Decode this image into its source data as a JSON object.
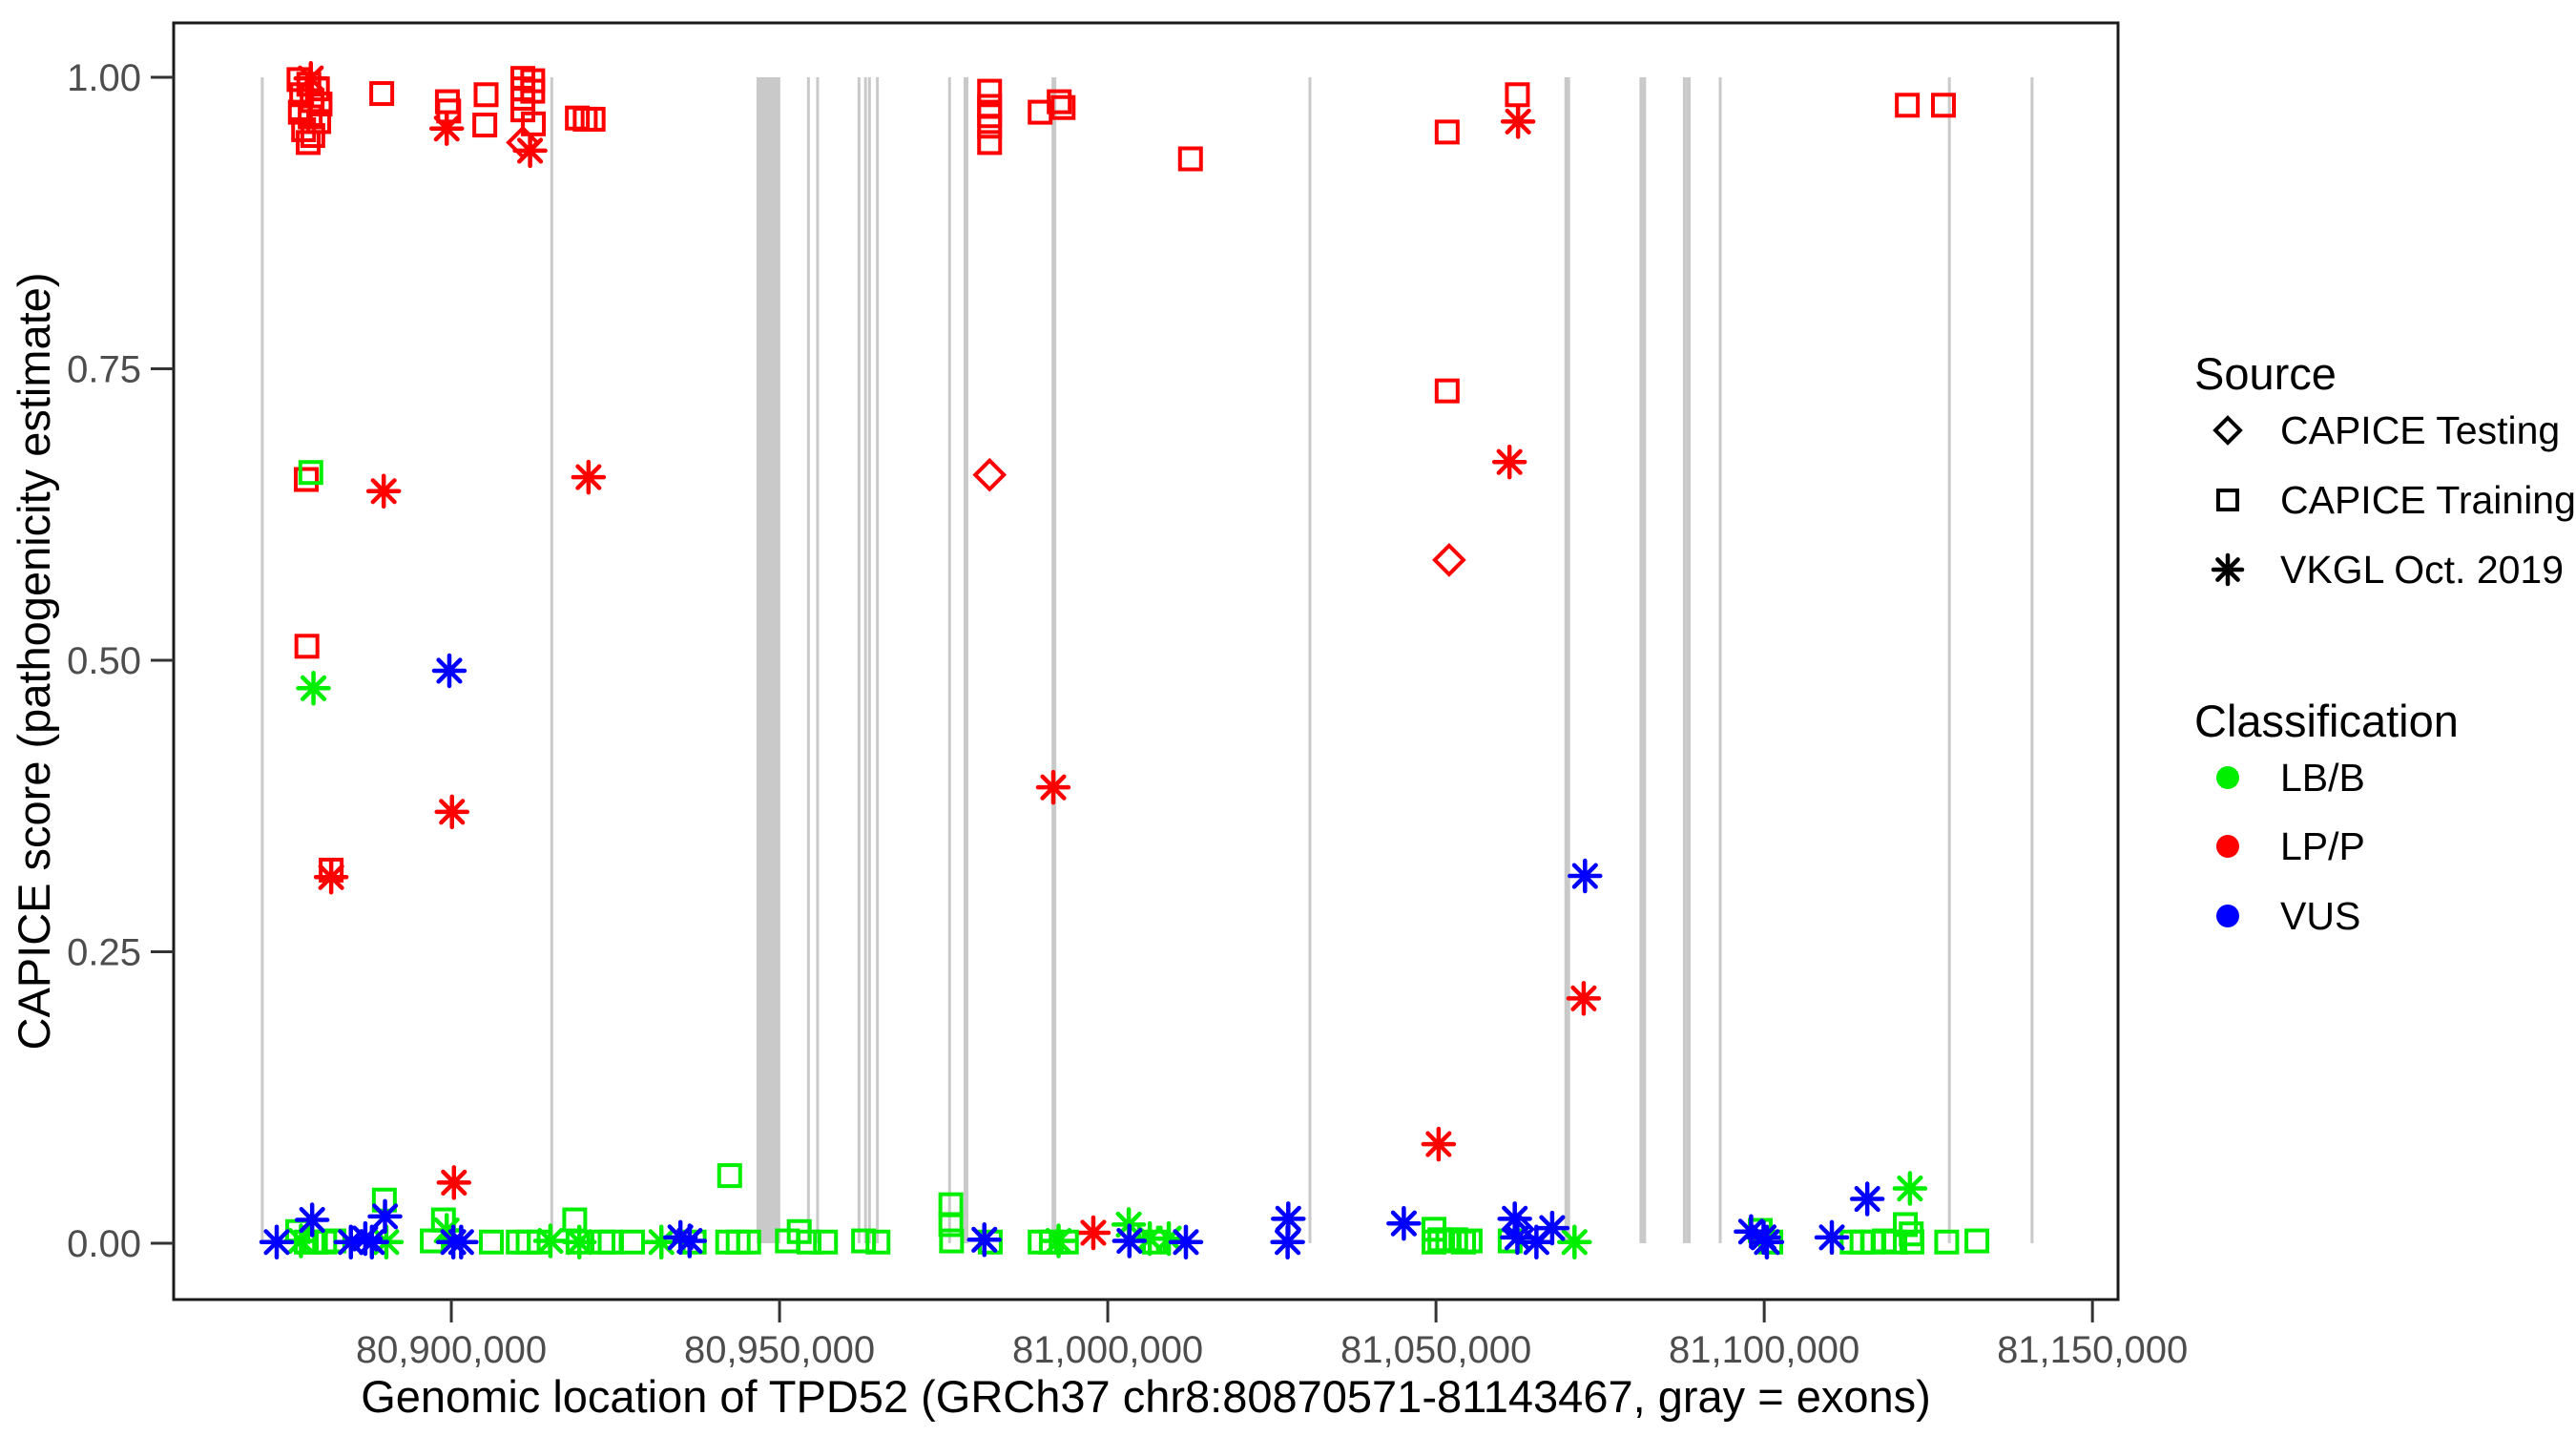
{
  "legend": {
    "source_title": "Source",
    "source_items": [
      {
        "label": "CAPICE Testing",
        "marker": "diamond"
      },
      {
        "label": "CAPICE Training",
        "marker": "square"
      },
      {
        "label": "VKGL Oct. 2019",
        "marker": "asterisk"
      }
    ],
    "classification_title": "Classification",
    "classification_items": [
      {
        "label": "LB/B",
        "color": "#00EE00"
      },
      {
        "label": "LP/P",
        "color": "#FF0000"
      },
      {
        "label": "VUS",
        "color": "#0000FF"
      }
    ]
  },
  "chart_data": {
    "type": "scatter",
    "title": "",
    "xlabel": "Genomic location of TPD52 (GRCh37 chr8:80870571-81143467, gray = exons)",
    "ylabel": "CAPICE score (pathogenicity estimate)",
    "x_domain": [
      80857700,
      81153900
    ],
    "y_domain": [
      -0.0483,
      1.0466
    ],
    "grid": false,
    "legend_position": "right",
    "x_ticks": [
      {
        "v": 80900000,
        "label": "80,900,000"
      },
      {
        "v": 80950000,
        "label": "80,950,000"
      },
      {
        "v": 81000000,
        "label": "81,000,000"
      },
      {
        "v": 81050000,
        "label": "81,050,000"
      },
      {
        "v": 81100000,
        "label": "81,100,000"
      },
      {
        "v": 81150000,
        "label": "81,150,000"
      }
    ],
    "y_ticks": [
      {
        "v": 0.0,
        "label": "0.00"
      },
      {
        "v": 0.25,
        "label": "0.25"
      },
      {
        "v": 0.5,
        "label": "0.50"
      },
      {
        "v": 0.75,
        "label": "0.75"
      },
      {
        "v": 1.0,
        "label": "1.00"
      }
    ],
    "exon_color": "#C9C9C9",
    "exons": [
      {
        "pos": 80871200,
        "w": 3
      },
      {
        "pos": 80915300,
        "w": 3
      },
      {
        "pos": 80948300,
        "w": 25
      },
      {
        "pos": 80954400,
        "w": 3
      },
      {
        "pos": 80955800,
        "w": 3
      },
      {
        "pos": 80962100,
        "w": 3
      },
      {
        "pos": 80963100,
        "w": 3
      },
      {
        "pos": 80963700,
        "w": 3
      },
      {
        "pos": 80964900,
        "w": 3
      },
      {
        "pos": 80975900,
        "w": 3
      },
      {
        "pos": 80978400,
        "w": 5
      },
      {
        "pos": 80991800,
        "w": 5
      },
      {
        "pos": 81030800,
        "w": 3
      },
      {
        "pos": 81070000,
        "w": 6
      },
      {
        "pos": 81081500,
        "w": 7
      },
      {
        "pos": 81087900,
        "w": 4
      },
      {
        "pos": 81088500,
        "w": 4
      },
      {
        "pos": 81093300,
        "w": 3
      },
      {
        "pos": 81128200,
        "w": 3
      },
      {
        "pos": 81140800,
        "w": 3
      }
    ],
    "points": [
      [
        80876800,
        0.998,
        "CAPICE Training",
        "LP/P"
      ],
      [
        80878300,
        0.994,
        "CAPICE Training",
        "LP/P"
      ],
      [
        80879600,
        0.99,
        "CAPICE Training",
        "LP/P"
      ],
      [
        80877200,
        0.985,
        "CAPICE Training",
        "LP/P"
      ],
      [
        80878800,
        0.98,
        "CAPICE Training",
        "LP/P"
      ],
      [
        80880000,
        0.977,
        "CAPICE Training",
        "LP/P"
      ],
      [
        80877000,
        0.97,
        "CAPICE Training",
        "LP/P"
      ],
      [
        80878500,
        0.966,
        "CAPICE Training",
        "LP/P"
      ],
      [
        80879800,
        0.962,
        "CAPICE Training",
        "LP/P"
      ],
      [
        80877500,
        0.955,
        "CAPICE Training",
        "LP/P"
      ],
      [
        80878900,
        0.95,
        "CAPICE Training",
        "LP/P"
      ],
      [
        80878200,
        0.944,
        "CAPICE Training",
        "LP/P"
      ],
      [
        80878600,
        0.999,
        "VKGL Oct. 2019",
        "LP/P"
      ],
      [
        80889400,
        0.986,
        "CAPICE Training",
        "LP/P"
      ],
      [
        80899400,
        0.979,
        "CAPICE Training",
        "LP/P"
      ],
      [
        80899600,
        0.971,
        "CAPICE Training",
        "LP/P"
      ],
      [
        80899300,
        0.956,
        "VKGL Oct. 2019",
        "LP/P"
      ],
      [
        80905300,
        0.985,
        "CAPICE Training",
        "LP/P"
      ],
      [
        80905100,
        0.959,
        "CAPICE Training",
        "LP/P"
      ],
      [
        80910900,
        0.999,
        "CAPICE Training",
        "LP/P"
      ],
      [
        80912400,
        0.997,
        "CAPICE Training",
        "LP/P"
      ],
      [
        80910900,
        0.99,
        "CAPICE Training",
        "LP/P"
      ],
      [
        80912400,
        0.988,
        "CAPICE Training",
        "LP/P"
      ],
      [
        80910900,
        0.982,
        "CAPICE Training",
        "LP/P"
      ],
      [
        80910900,
        0.972,
        "CAPICE Training",
        "LP/P"
      ],
      [
        80912500,
        0.96,
        "CAPICE Training",
        "LP/P"
      ],
      [
        80910900,
        0.944,
        "CAPICE Testing",
        "LP/P"
      ],
      [
        80912000,
        0.937,
        "VKGL Oct. 2019",
        "LP/P"
      ],
      [
        80919200,
        0.965,
        "CAPICE Training",
        "LP/P"
      ],
      [
        80920400,
        0.964,
        "CAPICE Training",
        "LP/P"
      ],
      [
        80921600,
        0.964,
        "CAPICE Training",
        "LP/P"
      ],
      [
        80877900,
        0.655,
        "CAPICE Training",
        "LP/P"
      ],
      [
        80878000,
        0.512,
        "CAPICE Training",
        "LP/P"
      ],
      [
        80881700,
        0.32,
        "CAPICE Training",
        "LP/P"
      ],
      [
        80881700,
        0.314,
        "VKGL Oct. 2019",
        "LP/P"
      ],
      [
        80889700,
        0.645,
        "VKGL Oct. 2019",
        "LP/P"
      ],
      [
        80900100,
        0.37,
        "VKGL Oct. 2019",
        "LP/P"
      ],
      [
        80900400,
        0.052,
        "VKGL Oct. 2019",
        "LP/P"
      ],
      [
        80920900,
        0.657,
        "VKGL Oct. 2019",
        "LP/P"
      ],
      [
        80982000,
        0.988,
        "CAPICE Training",
        "LP/P"
      ],
      [
        80982000,
        0.975,
        "CAPICE Training",
        "LP/P"
      ],
      [
        80982000,
        0.967,
        "CAPICE Training",
        "LP/P"
      ],
      [
        80982000,
        0.958,
        "CAPICE Training",
        "LP/P"
      ],
      [
        80982000,
        0.944,
        "CAPICE Training",
        "LP/P"
      ],
      [
        80982000,
        0.659,
        "CAPICE Testing",
        "LP/P"
      ],
      [
        80989700,
        0.97,
        "CAPICE Training",
        "LP/P"
      ],
      [
        80992600,
        0.979,
        "CAPICE Training",
        "LP/P"
      ],
      [
        80993200,
        0.974,
        "CAPICE Training",
        "LP/P"
      ],
      [
        81012600,
        0.93,
        "CAPICE Training",
        "LP/P"
      ],
      [
        80991700,
        0.391,
        "VKGL Oct. 2019",
        "LP/P"
      ],
      [
        80997800,
        0.009,
        "VKGL Oct. 2019",
        "LP/P"
      ],
      [
        81051700,
        0.953,
        "CAPICE Training",
        "LP/P"
      ],
      [
        81051700,
        0.731,
        "CAPICE Training",
        "LP/P"
      ],
      [
        81052000,
        0.586,
        "CAPICE Testing",
        "LP/P"
      ],
      [
        81050400,
        0.085,
        "VKGL Oct. 2019",
        "LP/P"
      ],
      [
        81062400,
        0.985,
        "CAPICE Training",
        "LP/P"
      ],
      [
        81062500,
        0.962,
        "VKGL Oct. 2019",
        "LP/P"
      ],
      [
        81061200,
        0.67,
        "VKGL Oct. 2019",
        "LP/P"
      ],
      [
        81072500,
        0.21,
        "VKGL Oct. 2019",
        "LP/P"
      ],
      [
        81121800,
        0.976,
        "CAPICE Training",
        "LP/P"
      ],
      [
        81127300,
        0.976,
        "CAPICE Training",
        "LP/P"
      ],
      [
        80878600,
        0.661,
        "CAPICE Training",
        "LB/B"
      ],
      [
        80879000,
        0.476,
        "VKGL Oct. 2019",
        "LB/B"
      ],
      [
        80876600,
        0.01,
        "CAPICE Training",
        "LB/B"
      ],
      [
        80877900,
        0.001,
        "CAPICE Training",
        "LB/B"
      ],
      [
        80877100,
        0.002,
        "VKGL Oct. 2019",
        "LB/B"
      ],
      [
        80879300,
        0.001,
        "CAPICE Training",
        "LB/B"
      ],
      [
        80880700,
        0.001,
        "CAPICE Training",
        "LB/B"
      ],
      [
        80882100,
        0.002,
        "CAPICE Training",
        "LB/B"
      ],
      [
        80890100,
        0.001,
        "VKGL Oct. 2019",
        "LB/B"
      ],
      [
        80889800,
        0.037,
        "CAPICE Training",
        "LB/B"
      ],
      [
        80897100,
        0.002,
        "CAPICE Training",
        "LB/B"
      ],
      [
        80898800,
        0.02,
        "CAPICE Training",
        "LB/B"
      ],
      [
        80899300,
        0.011,
        "VKGL Oct. 2019",
        "LB/B"
      ],
      [
        80906100,
        0.001,
        "CAPICE Training",
        "LB/B"
      ],
      [
        80910200,
        0.001,
        "CAPICE Training",
        "LB/B"
      ],
      [
        80911700,
        0.001,
        "CAPICE Training",
        "LB/B"
      ],
      [
        80913400,
        0.001,
        "CAPICE Training",
        "LB/B"
      ],
      [
        80915100,
        0.002,
        "VKGL Oct. 2019",
        "LB/B"
      ],
      [
        80918800,
        0.02,
        "CAPICE Training",
        "LB/B"
      ],
      [
        80919300,
        0.001,
        "CAPICE Training",
        "LB/B"
      ],
      [
        80919500,
        0.001,
        "VKGL Oct. 2019",
        "LB/B"
      ],
      [
        80923100,
        0.001,
        "CAPICE Training",
        "LB/B"
      ],
      [
        80924200,
        0.001,
        "CAPICE Training",
        "LB/B"
      ],
      [
        80927600,
        0.001,
        "CAPICE Training",
        "LB/B"
      ],
      [
        80932000,
        0.001,
        "VKGL Oct. 2019",
        "LB/B"
      ],
      [
        80937000,
        0.001,
        "CAPICE Training",
        "LB/B"
      ],
      [
        80942400,
        0.058,
        "CAPICE Training",
        "LB/B"
      ],
      [
        80942100,
        0.001,
        "CAPICE Training",
        "LB/B"
      ],
      [
        80943700,
        0.001,
        "CAPICE Training",
        "LB/B"
      ],
      [
        80945300,
        0.001,
        "CAPICE Training",
        "LB/B"
      ],
      [
        80951200,
        0.002,
        "CAPICE Training",
        "LB/B"
      ],
      [
        80953000,
        0.01,
        "CAPICE Training",
        "LB/B"
      ],
      [
        80954500,
        0.001,
        "CAPICE Training",
        "LB/B"
      ],
      [
        80957000,
        0.001,
        "CAPICE Training",
        "LB/B"
      ],
      [
        80962800,
        0.002,
        "CAPICE Training",
        "LB/B"
      ],
      [
        80965000,
        0.001,
        "CAPICE Training",
        "LB/B"
      ],
      [
        80976100,
        0.033,
        "CAPICE Training",
        "LB/B"
      ],
      [
        80976100,
        0.016,
        "CAPICE Training",
        "LB/B"
      ],
      [
        80976200,
        0.002,
        "CAPICE Training",
        "LB/B"
      ],
      [
        80982100,
        0.001,
        "CAPICE Training",
        "LB/B"
      ],
      [
        80989700,
        0.001,
        "CAPICE Training",
        "LB/B"
      ],
      [
        80991400,
        0.001,
        "CAPICE Training",
        "LB/B"
      ],
      [
        80992500,
        0.002,
        "VKGL Oct. 2019",
        "LB/B"
      ],
      [
        80993700,
        0.001,
        "CAPICE Training",
        "LB/B"
      ],
      [
        81003200,
        0.016,
        "VKGL Oct. 2019",
        "LB/B"
      ],
      [
        81006400,
        0.004,
        "VKGL Oct. 2019",
        "LB/B"
      ],
      [
        81007100,
        0.001,
        "CAPICE Training",
        "LB/B"
      ],
      [
        81009300,
        0.004,
        "VKGL Oct. 2019",
        "LB/B"
      ],
      [
        81049700,
        0.012,
        "CAPICE Training",
        "LB/B"
      ],
      [
        81049700,
        0.001,
        "CAPICE Training",
        "LB/B"
      ],
      [
        81050600,
        0.003,
        "CAPICE Training",
        "LB/B"
      ],
      [
        81051800,
        0.002,
        "CAPICE Training",
        "LB/B"
      ],
      [
        81053000,
        0.003,
        "CAPICE Training",
        "LB/B"
      ],
      [
        81054200,
        0.001,
        "CAPICE Training",
        "LB/B"
      ],
      [
        81055200,
        0.002,
        "CAPICE Training",
        "LB/B"
      ],
      [
        81061300,
        0.002,
        "CAPICE Training",
        "LB/B"
      ],
      [
        81071100,
        0.001,
        "VKGL Oct. 2019",
        "LB/B"
      ],
      [
        81099400,
        0.011,
        "CAPICE Training",
        "LB/B"
      ],
      [
        81101000,
        0.001,
        "CAPICE Training",
        "LB/B"
      ],
      [
        81113400,
        0.001,
        "CAPICE Training",
        "LB/B"
      ],
      [
        81114900,
        0.001,
        "CAPICE Training",
        "LB/B"
      ],
      [
        81116500,
        0.001,
        "CAPICE Training",
        "LB/B"
      ],
      [
        81118300,
        0.002,
        "CAPICE Training",
        "LB/B"
      ],
      [
        81119900,
        0.001,
        "CAPICE Training",
        "LB/B"
      ],
      [
        81121500,
        0.016,
        "CAPICE Training",
        "LB/B"
      ],
      [
        81122200,
        0.047,
        "VKGL Oct. 2019",
        "LB/B"
      ],
      [
        81122400,
        0.008,
        "CAPICE Training",
        "LB/B"
      ],
      [
        81122500,
        0.001,
        "CAPICE Training",
        "LB/B"
      ],
      [
        81127800,
        0.001,
        "CAPICE Training",
        "LB/B"
      ],
      [
        81132400,
        0.002,
        "CAPICE Training",
        "LB/B"
      ],
      [
        80873400,
        0.001,
        "VKGL Oct. 2019",
        "VUS"
      ],
      [
        80878800,
        0.02,
        "VKGL Oct. 2019",
        "VUS"
      ],
      [
        80884700,
        0.001,
        "VKGL Oct. 2019",
        "VUS"
      ],
      [
        80886900,
        0.004,
        "VKGL Oct. 2019",
        "VUS"
      ],
      [
        80887900,
        0.001,
        "VKGL Oct. 2019",
        "VUS"
      ],
      [
        80889900,
        0.023,
        "VKGL Oct. 2019",
        "VUS"
      ],
      [
        80899700,
        0.491,
        "VKGL Oct. 2019",
        "VUS"
      ],
      [
        80900300,
        0.001,
        "VKGL Oct. 2019",
        "VUS"
      ],
      [
        80901500,
        0.001,
        "VKGL Oct. 2019",
        "VUS"
      ],
      [
        80934900,
        0.005,
        "VKGL Oct. 2019",
        "VUS"
      ],
      [
        80936300,
        0.002,
        "VKGL Oct. 2019",
        "VUS"
      ],
      [
        80981200,
        0.003,
        "VKGL Oct. 2019",
        "VUS"
      ],
      [
        81003300,
        0.002,
        "VKGL Oct. 2019",
        "VUS"
      ],
      [
        81011900,
        0.001,
        "VKGL Oct. 2019",
        "VUS"
      ],
      [
        81027500,
        0.021,
        "VKGL Oct. 2019",
        "VUS"
      ],
      [
        81027400,
        0.001,
        "VKGL Oct. 2019",
        "VUS"
      ],
      [
        81045100,
        0.017,
        "VKGL Oct. 2019",
        "VUS"
      ],
      [
        81062000,
        0.021,
        "VKGL Oct. 2019",
        "VUS"
      ],
      [
        81062500,
        0.012,
        "CAPICE Testing",
        "VUS"
      ],
      [
        81062400,
        0.005,
        "VKGL Oct. 2019",
        "VUS"
      ],
      [
        81065300,
        0.001,
        "VKGL Oct. 2019",
        "VUS"
      ],
      [
        81067700,
        0.013,
        "VKGL Oct. 2019",
        "VUS"
      ],
      [
        81072700,
        0.315,
        "VKGL Oct. 2019",
        "VUS"
      ],
      [
        81098000,
        0.01,
        "VKGL Oct. 2019",
        "VUS"
      ],
      [
        81099900,
        0.005,
        "VKGL Oct. 2019",
        "VUS"
      ],
      [
        81100400,
        0.001,
        "VKGL Oct. 2019",
        "VUS"
      ],
      [
        81110300,
        0.005,
        "VKGL Oct. 2019",
        "VUS"
      ],
      [
        81115700,
        0.038,
        "VKGL Oct. 2019",
        "VUS"
      ]
    ]
  }
}
